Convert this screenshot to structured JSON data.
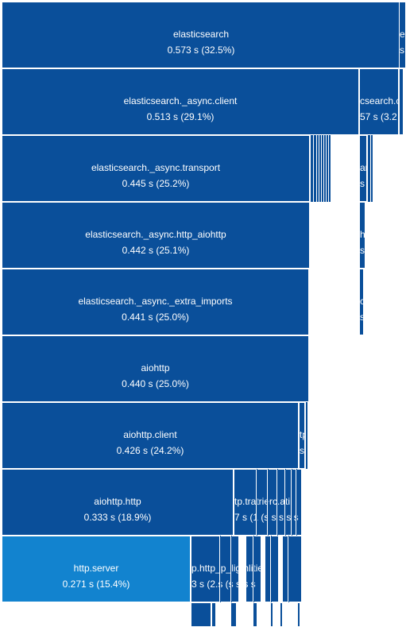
{
  "flamegraph": {
    "rows": [
      {
        "name": "elasticsearch",
        "time": "0.573 s (32.5%)",
        "sibling_name": "e",
        "sibling_time": "s"
      },
      {
        "name": "elasticsearch._async.client",
        "time": "0.513 s (29.1%)",
        "sibling_name": "csearch.c",
        "sibling_time": "57 s (3.2"
      },
      {
        "name": "elasticsearch._async.transport",
        "time": "0.445 s (25.2%)",
        "sibling_name": "arch",
        "sibling_time": "s"
      },
      {
        "name": "elasticsearch._async.http_aiohttp",
        "time": "0.442 s (25.1%)",
        "sibling_name": "h",
        "sibling_time": "s"
      },
      {
        "name": "elasticsearch._async._extra_imports",
        "time": "0.441 s (25.0%)",
        "sibling_name": "c",
        "sibling_time": "s"
      },
      {
        "name": "aiohttp",
        "time": "0.440 s (25.0%)"
      },
      {
        "name": "aiohttp.client",
        "time": "0.426 s (24.2%)",
        "sibling_name": "tp",
        "sibling_time": "s"
      },
      {
        "name": "aiohttp.http",
        "time": "0.333 s (18.9%)",
        "sibling_name": "tp.tratrierc.ati",
        "sibling_time": "7 s (1 (s s s s s"
      },
      {
        "name": "http.server",
        "time": "0.271 s (15.4%)",
        "sibling_name": "p.http_p_ligmlitie",
        "sibling_time": "3 s (2.s (s s s s"
      }
    ]
  },
  "colors": {
    "frame": "#0a4f9a",
    "highlight": "#1283cf",
    "background": "#ffffff"
  }
}
